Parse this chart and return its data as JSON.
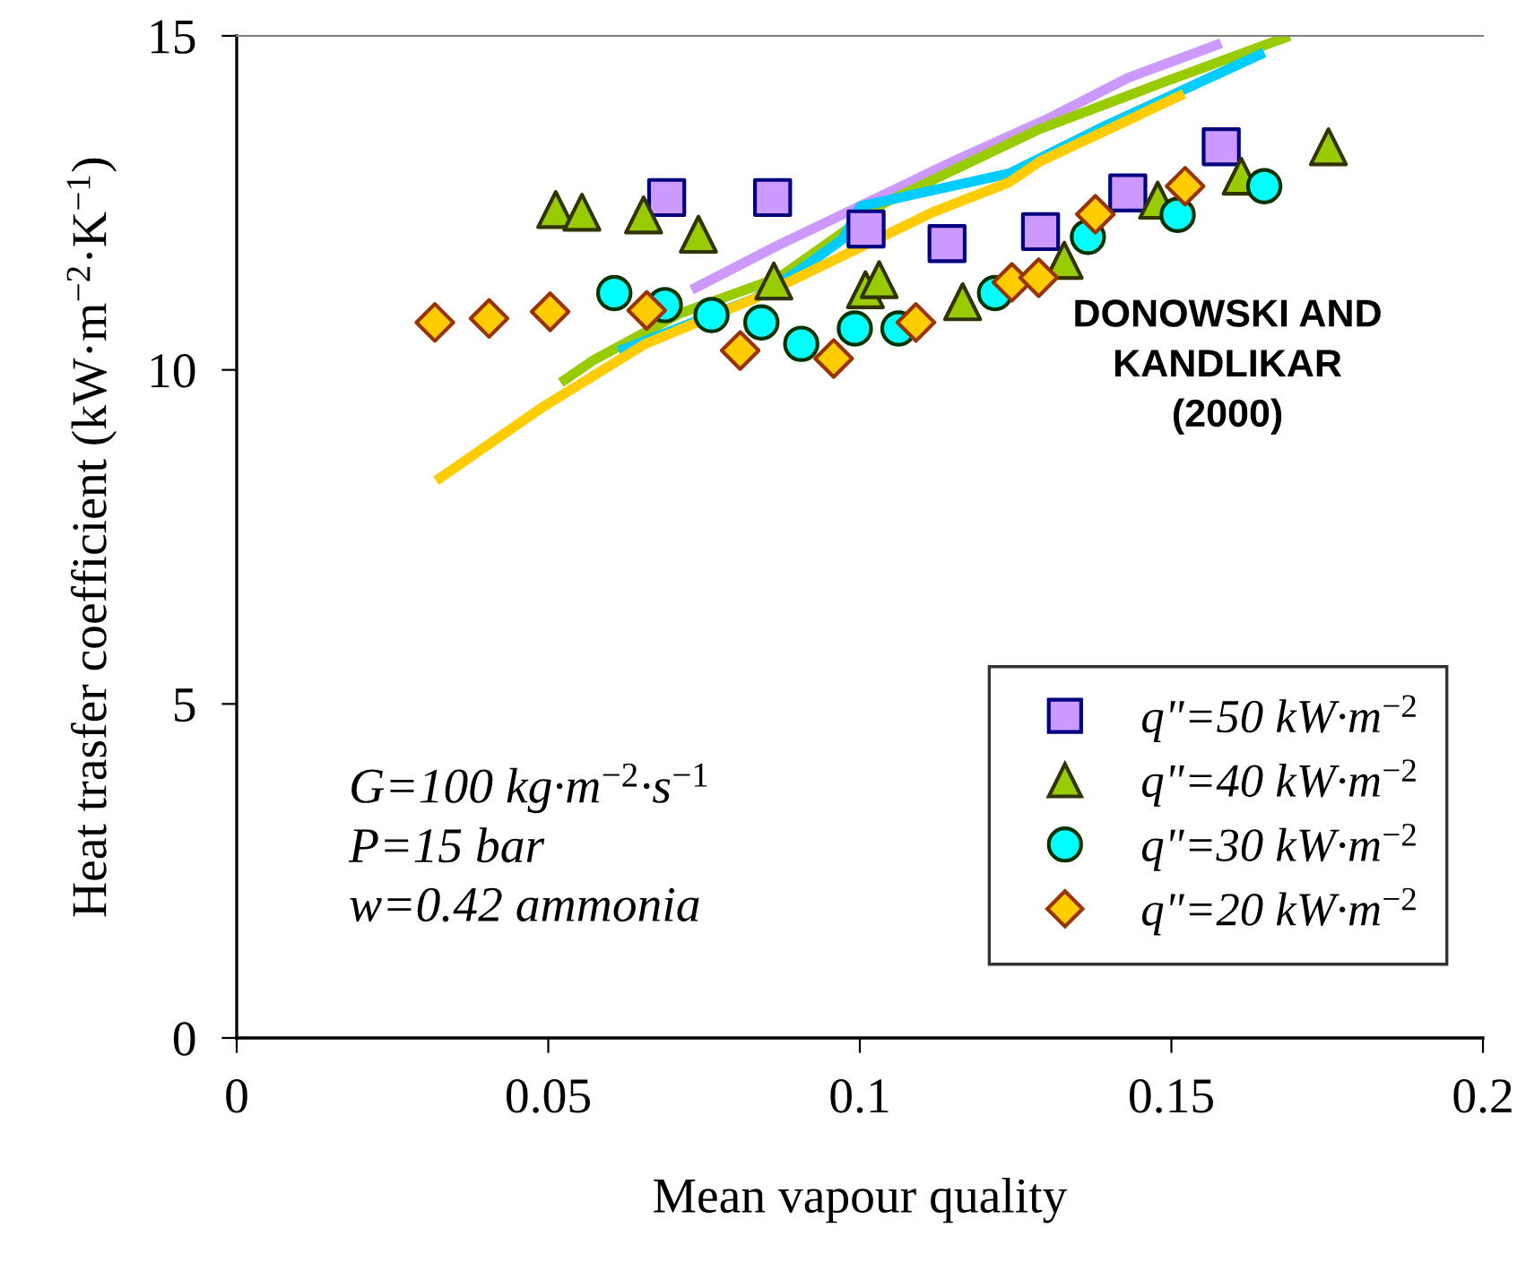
{
  "chart_data": {
    "type": "scatter",
    "xlabel": "Mean vapour quality",
    "ylabel": "Heat trasfer coefficient (kW·m$^{−2}$·K$^{−1}$)",
    "xlim": [
      0,
      0.2
    ],
    "ylim": [
      0,
      15
    ],
    "xticks": [
      0,
      0.05,
      0.1,
      0.15,
      0.2
    ],
    "yticks": [
      0,
      5,
      10,
      15
    ],
    "grid": false,
    "legend": "bottom right",
    "series": [
      {
        "name": "q\"=50 kW·m$^{−2}$",
        "marker": "square",
        "color": "#cc99ff",
        "x": [
          0.069,
          0.086,
          0.101,
          0.114,
          0.129,
          0.143,
          0.158
        ],
        "values": [
          12.58,
          12.58,
          12.11,
          11.89,
          12.07,
          12.65,
          13.34
        ]
      },
      {
        "name": "q\"=40 kW·m$^{−2}$",
        "marker": "triangle",
        "color": "#99cc00",
        "x": [
          0.0512,
          0.0554,
          0.0653,
          0.0741,
          0.0862,
          0.1009,
          0.1031,
          0.1165,
          0.1328,
          0.1478,
          0.1612,
          0.1752
        ],
        "values": [
          12.4,
          12.36,
          12.32,
          12.03,
          11.33,
          11.2,
          11.35,
          11.02,
          11.64,
          12.54,
          12.9,
          13.34
        ]
      },
      {
        "name": "q\"=30 kW·m$^{−2}$",
        "marker": "circle",
        "color": "#00ffff",
        "x": [
          0.0606,
          0.0687,
          0.0762,
          0.0842,
          0.0906,
          0.0992,
          0.1062,
          0.1217,
          0.1366,
          0.151,
          0.1649
        ],
        "values": [
          11.15,
          10.97,
          10.82,
          10.71,
          10.39,
          10.62,
          10.62,
          11.15,
          11.99,
          12.32,
          12.75
        ]
      },
      {
        "name": "q\"=20 kW·m$^{−2}$",
        "marker": "diamond",
        "color": "#ffcc00",
        "x": [
          0.0318,
          0.0405,
          0.0503,
          0.0658,
          0.0808,
          0.0958,
          0.109,
          0.1244,
          0.1287,
          0.1378,
          0.1522
        ],
        "values": [
          10.71,
          10.77,
          10.87,
          10.89,
          10.29,
          10.17,
          10.71,
          11.31,
          11.38,
          12.33,
          12.75
        ]
      },
      {
        "type": "line",
        "color": "#cc99ff",
        "x": [
          0.073,
          0.087,
          0.1,
          0.115,
          0.13,
          0.143,
          0.158
        ],
        "values": [
          11.2,
          11.87,
          12.45,
          13.12,
          13.75,
          14.37,
          14.89
        ]
      },
      {
        "type": "line",
        "color": "#99cc00",
        "x": [
          0.052,
          0.057,
          0.071,
          0.087,
          0.104,
          0.129,
          0.148,
          0.169
        ],
        "values": [
          9.81,
          10.13,
          10.84,
          11.38,
          12.5,
          13.61,
          14.28,
          15.0
        ]
      },
      {
        "type": "line",
        "color": "#00ccff",
        "x": [
          0.0613,
          0.0829,
          0.0906,
          0.0973,
          0.1001,
          0.124,
          0.1384,
          0.1649
        ],
        "values": [
          10.28,
          11.06,
          11.51,
          11.96,
          12.45,
          12.94,
          13.61,
          14.75
        ]
      },
      {
        "type": "line",
        "color": "#ffcc00",
        "x": [
          0.032,
          0.0492,
          0.0656,
          0.0829,
          0.1117,
          0.124,
          0.1289,
          0.152
        ],
        "values": [
          8.34,
          9.45,
          10.39,
          11.06,
          12.36,
          12.81,
          13.12,
          14.13
        ]
      }
    ],
    "annotations": [
      "DONOWSKI AND\nKANDLIKAR\n(2000)",
      "G=100 kg·m$^{−2}$·s$^{−1}$\nP=15 bar\nw=0.42 ammonia"
    ]
  }
}
